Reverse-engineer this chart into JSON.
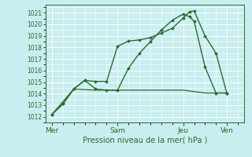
{
  "background_color": "#c8eef0",
  "grid_color": "#ffffff",
  "line_color": "#2d6a2d",
  "sep_color": "#d4a0a0",
  "title": "Pression niveau de la mer( hPa )",
  "ylim": [
    1011.5,
    1021.7
  ],
  "yticks": [
    1012,
    1013,
    1014,
    1015,
    1016,
    1017,
    1018,
    1019,
    1020,
    1021
  ],
  "day_labels": [
    "| Mer",
    "| Sam",
    "| Jeu",
    "| Ven"
  ],
  "day_positions": [
    0,
    3,
    6,
    8
  ],
  "day_tick_labels": [
    "Mer",
    "Sam",
    "Jeu",
    "Ven"
  ],
  "xlim": [
    -0.3,
    8.8
  ],
  "line1_x": [
    0,
    0.5,
    1.0,
    1.5,
    2.0,
    2.5,
    3.0,
    3.5,
    4.0,
    4.5,
    5.0,
    5.5,
    6.0,
    6.3,
    6.5,
    7.0,
    7.5,
    8.0
  ],
  "line1_y": [
    1012.2,
    1013.1,
    1014.4,
    1015.15,
    1015.05,
    1015.05,
    1018.1,
    1018.55,
    1018.65,
    1018.85,
    1019.25,
    1019.65,
    1020.55,
    1021.1,
    1021.15,
    1019.0,
    1017.5,
    1014.0
  ],
  "line2_x": [
    0,
    0.5,
    1.0,
    1.5,
    2.0,
    2.5,
    3.0,
    3.5,
    4.0,
    4.5,
    5.0,
    5.5,
    6.0,
    6.3,
    6.5,
    7.0,
    7.5,
    8.0
  ],
  "line2_y": [
    1012.2,
    1013.1,
    1014.4,
    1015.15,
    1014.4,
    1014.3,
    1014.3,
    1016.2,
    1017.5,
    1018.5,
    1019.5,
    1020.35,
    1020.9,
    1020.65,
    1020.25,
    1016.3,
    1014.05,
    1014.05
  ],
  "line3_x": [
    0,
    1.0,
    2.0,
    3.0,
    4.0,
    5.0,
    6.0,
    7.0,
    8.0
  ],
  "line3_y": [
    1012.2,
    1014.4,
    1014.3,
    1014.3,
    1014.3,
    1014.3,
    1014.3,
    1014.05,
    1014.05
  ],
  "figsize": [
    3.2,
    2.0
  ],
  "dpi": 100
}
